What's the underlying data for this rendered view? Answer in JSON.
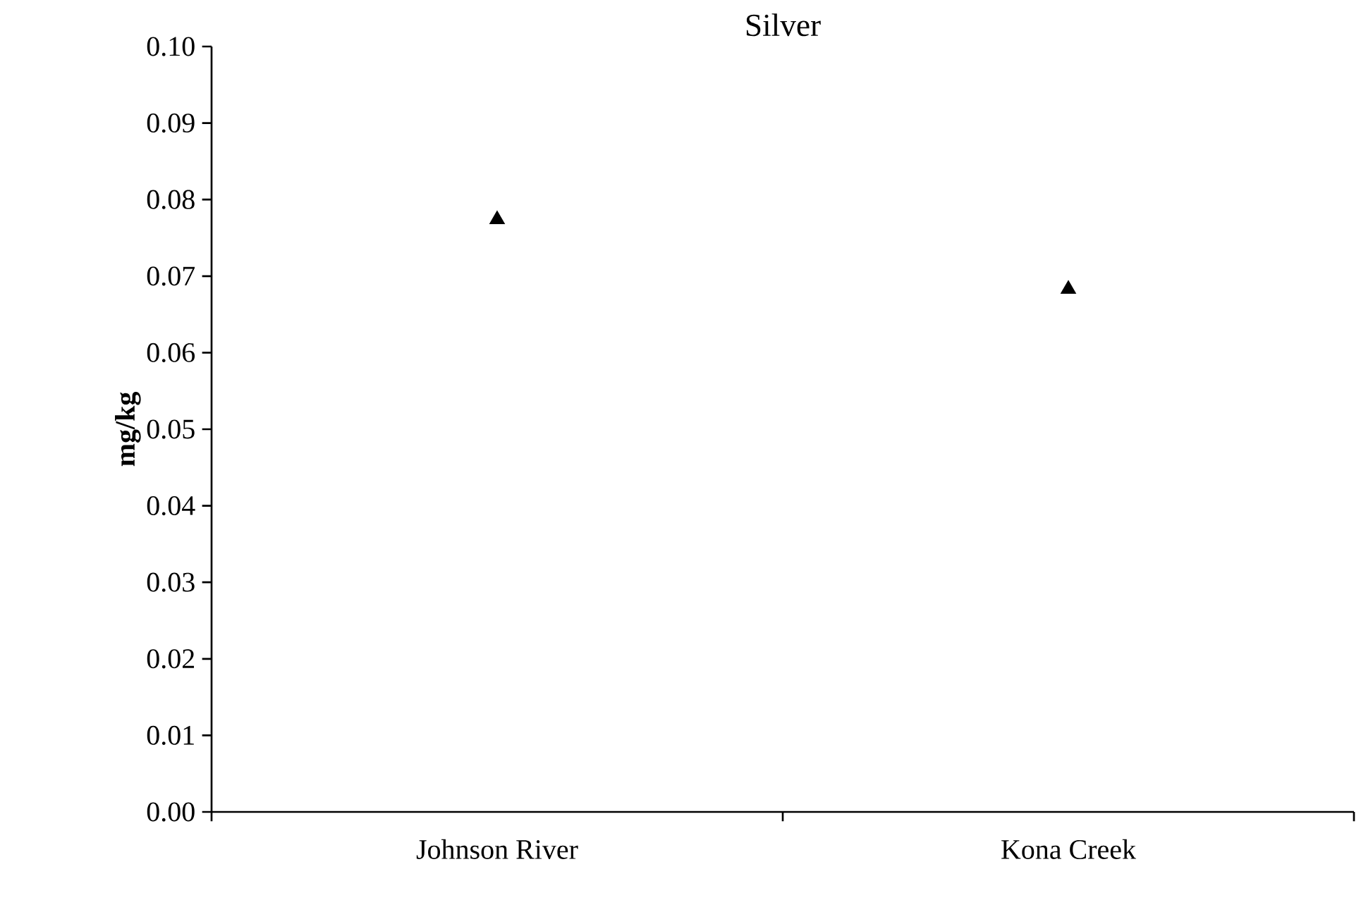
{
  "chart_data": {
    "type": "scatter",
    "title": "Silver",
    "ylabel": "mg/kg",
    "categories": [
      "Johnson River",
      "Kona Creek"
    ],
    "series": [
      {
        "color": "#000000",
        "values": [
          0.0774,
          0.0683
        ]
      }
    ],
    "marker": "triangle",
    "ylim": [
      0,
      0.1
    ],
    "yticks": [
      {
        "value": 0,
        "label": "0.00"
      },
      {
        "value": 0.01,
        "label": "0.01"
      },
      {
        "value": 0.02,
        "label": "0.02"
      },
      {
        "value": 0.03,
        "label": "0.03"
      },
      {
        "value": 0.04,
        "label": "0.04"
      },
      {
        "value": 0.05,
        "label": "0.05"
      },
      {
        "value": 0.06,
        "label": "0.06"
      },
      {
        "value": 0.07,
        "label": "0.07"
      },
      {
        "value": 0.08,
        "label": "0.08"
      },
      {
        "value": 0.09,
        "label": "0.09"
      },
      {
        "value": 0.1,
        "label": "0.10"
      }
    ],
    "grid": false
  }
}
